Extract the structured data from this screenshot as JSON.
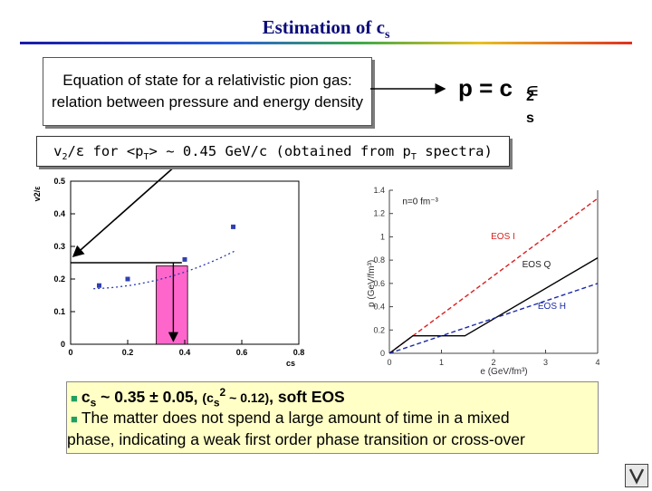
{
  "slide": {
    "title_main": "Estimation of c",
    "title_sub": "s",
    "eos_box_text": "Equation of state for a relativistic pion gas: relation between pressure and energy density",
    "equation": {
      "lhs": "p = c",
      "sup": "2",
      "sub": "s",
      "eps": "∊"
    },
    "v2_box": {
      "part1": "v",
      "s1": "2",
      "part2": "/ε for <p",
      "s2": "T",
      "part3": "> ~ 0.45 GeV/c (obtained from p",
      "s3": "T",
      "part4": " spectra)"
    },
    "conclusion": {
      "line1_prefix": "c",
      "line1_sub": "s",
      "line1_mid": " ~ 0.35 ± 0.05, ",
      "line1_paren_open": "(c",
      "line1_paren_sub": "s",
      "line1_paren_sup": "2",
      "line1_paren_rest": " ~ 0.12)",
      "line1_tail": ", soft EOS",
      "line2": "The matter does not spend a large amount of time in a mixed",
      "line3": "phase, indicating a weak first order phase transition or cross-over"
    }
  },
  "chart_data": [
    {
      "type": "scatter",
      "title": "",
      "xlabel": "cs",
      "ylabel": "v2/ε",
      "xlim": [
        0,
        0.8
      ],
      "ylim": [
        0,
        0.5
      ],
      "x_ticks": [
        "0",
        "0.2",
        "0.4",
        "0.6",
        "0.8"
      ],
      "y_ticks": [
        "0",
        "0.1",
        "0.2",
        "0.3",
        "0.4",
        "0.5"
      ],
      "series": [
        {
          "x": [
            0.1,
            0.2,
            0.4,
            0.57
          ],
          "y": [
            0.18,
            0.2,
            0.26,
            0.36
          ]
        }
      ],
      "highlight_band": {
        "x": [
          0.3,
          0.41
        ],
        "y": [
          0,
          0.24
        ]
      },
      "reference_line_y": 0.25,
      "fit_curve_color": "#2a3ab0",
      "band_color": "#ff66cc"
    },
    {
      "type": "line",
      "title": "",
      "xlabel": "e (GeV/fm³)",
      "ylabel": "p (GeV/fm³)",
      "xlim": [
        0,
        4
      ],
      "ylim": [
        0,
        1.4
      ],
      "x_ticks": [
        "0",
        "1",
        "2",
        "3",
        "4"
      ],
      "y_ticks": [
        "0",
        "0.2",
        "0.4",
        "0.6",
        "0.8",
        "1",
        "1.2",
        "1.4"
      ],
      "annotation": "n=0 fm⁻³",
      "series": [
        {
          "name": "EOS I",
          "x": [
            0,
            4
          ],
          "y": [
            0,
            1.33
          ],
          "color": "#d82020",
          "style": "dashed"
        },
        {
          "name": "EOS Q",
          "x": [
            0,
            0.45,
            1.45,
            4
          ],
          "y": [
            0,
            0.15,
            0.15,
            0.82
          ],
          "color": "#000000",
          "style": "solid"
        },
        {
          "name": "EOS H",
          "x": [
            0,
            4
          ],
          "y": [
            0,
            0.6
          ],
          "color": "#1a2aa8",
          "style": "dashed"
        }
      ]
    }
  ]
}
